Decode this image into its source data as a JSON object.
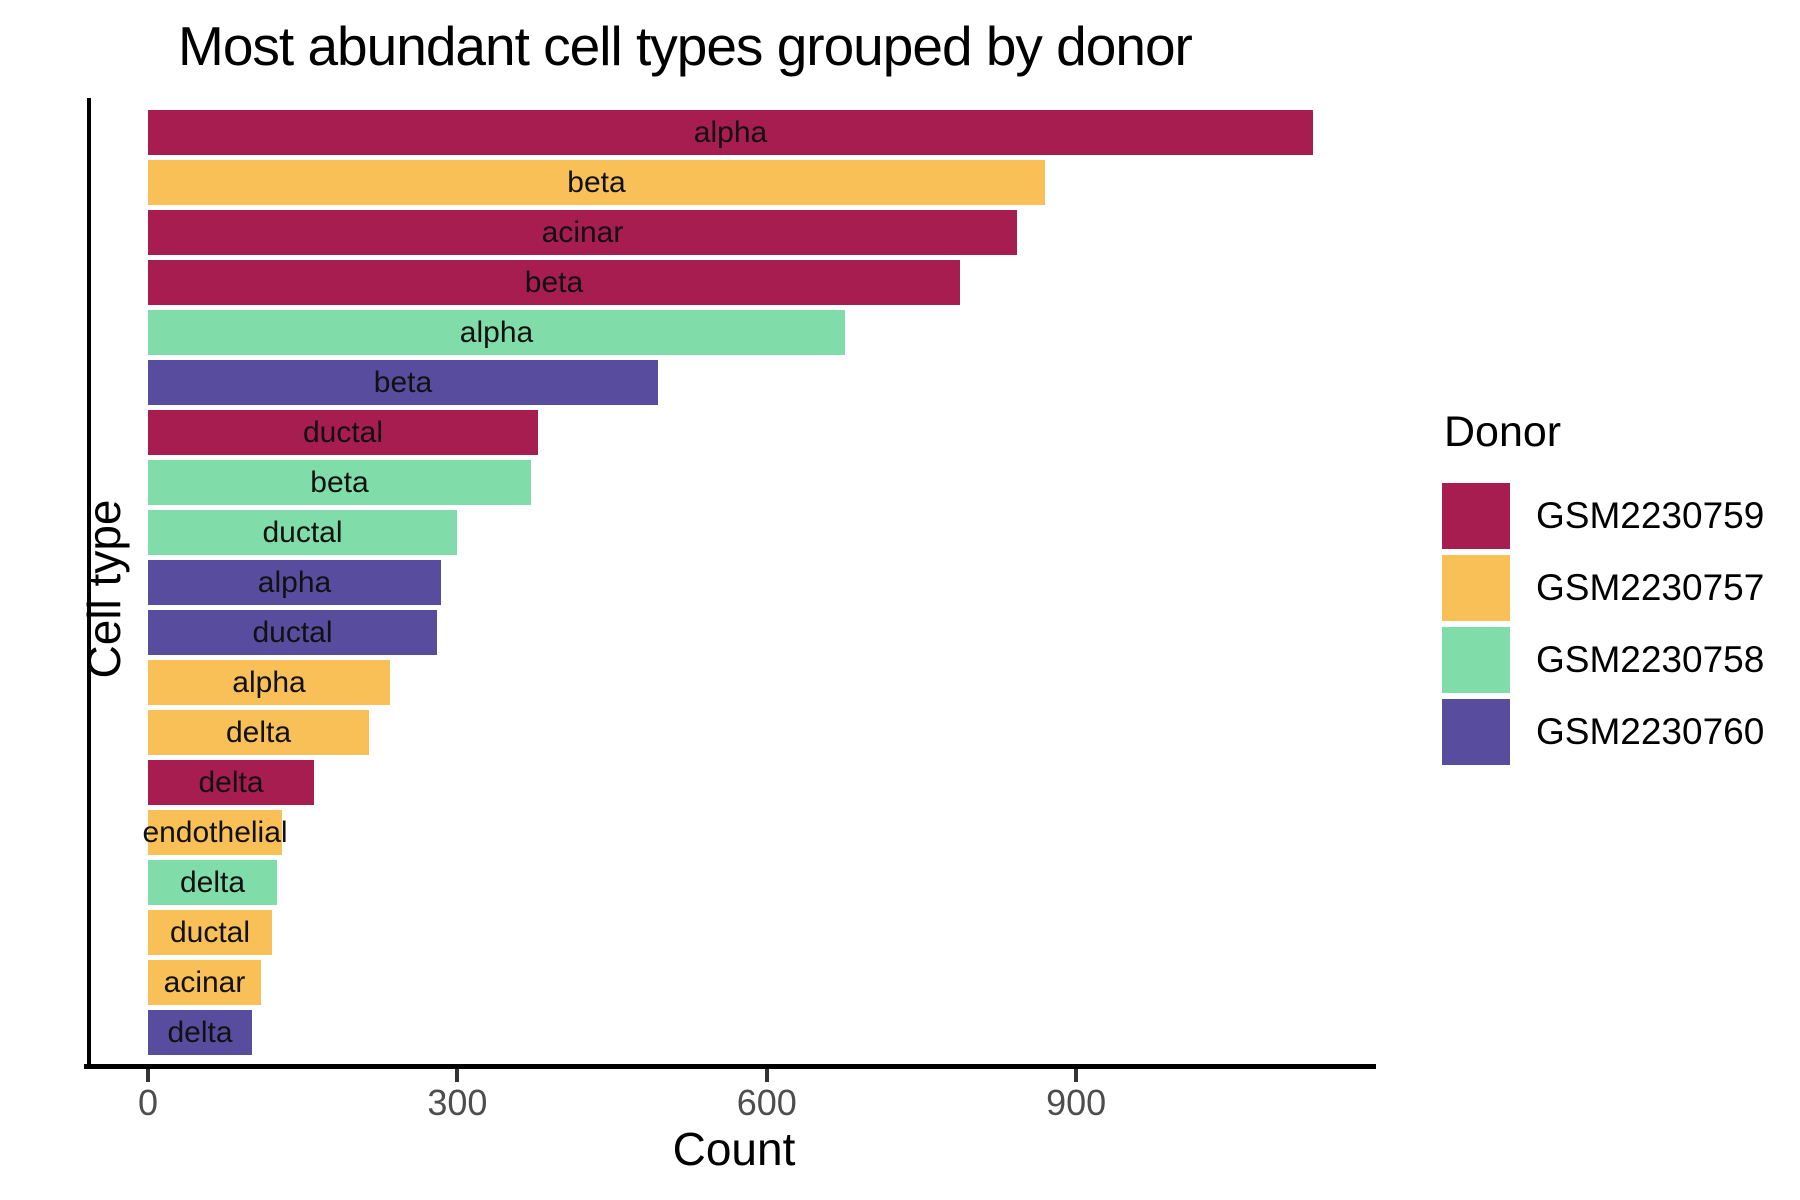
{
  "chart_data": {
    "type": "bar",
    "orientation": "horizontal",
    "title": "Most abundant cell types grouped by donor",
    "xlabel": "Count",
    "ylabel": "Cell type",
    "x_ticks": [
      0,
      300,
      600,
      900
    ],
    "x_axis_range": [
      0,
      1190
    ],
    "grid": false,
    "bar_label_position": "center-inside",
    "legend": {
      "title": "Donor",
      "position": "right",
      "entries": [
        {
          "label": "GSM2230759",
          "color": "#A81D4F"
        },
        {
          "label": "GSM2230757",
          "color": "#F8C057"
        },
        {
          "label": "GSM2230758",
          "color": "#80DCA8"
        },
        {
          "label": "GSM2230760",
          "color": "#584C9F"
        }
      ]
    },
    "bars": [
      {
        "cell_type": "alpha",
        "donor": "GSM2230759",
        "value": 1130
      },
      {
        "cell_type": "beta",
        "donor": "GSM2230757",
        "value": 870
      },
      {
        "cell_type": "acinar",
        "donor": "GSM2230759",
        "value": 843
      },
      {
        "cell_type": "beta",
        "donor": "GSM2230759",
        "value": 787
      },
      {
        "cell_type": "alpha",
        "donor": "GSM2230758",
        "value": 676
      },
      {
        "cell_type": "beta",
        "donor": "GSM2230760",
        "value": 495
      },
      {
        "cell_type": "ductal",
        "donor": "GSM2230759",
        "value": 378
      },
      {
        "cell_type": "beta",
        "donor": "GSM2230758",
        "value": 371
      },
      {
        "cell_type": "ductal",
        "donor": "GSM2230758",
        "value": 300
      },
      {
        "cell_type": "alpha",
        "donor": "GSM2230760",
        "value": 284
      },
      {
        "cell_type": "ductal",
        "donor": "GSM2230760",
        "value": 280
      },
      {
        "cell_type": "alpha",
        "donor": "GSM2230757",
        "value": 235
      },
      {
        "cell_type": "delta",
        "donor": "GSM2230757",
        "value": 214
      },
      {
        "cell_type": "delta",
        "donor": "GSM2230759",
        "value": 161
      },
      {
        "cell_type": "endothelial",
        "donor": "GSM2230757",
        "value": 130
      },
      {
        "cell_type": "delta",
        "donor": "GSM2230758",
        "value": 125
      },
      {
        "cell_type": "ductal",
        "donor": "GSM2230757",
        "value": 120
      },
      {
        "cell_type": "acinar",
        "donor": "GSM2230757",
        "value": 110
      },
      {
        "cell_type": "delta",
        "donor": "GSM2230760",
        "value": 101
      }
    ],
    "colors": {
      "axis_line": "#000000",
      "tick_mark": "#333333",
      "tick_label": "#4D4D4D",
      "bar_label": "#111111"
    }
  }
}
